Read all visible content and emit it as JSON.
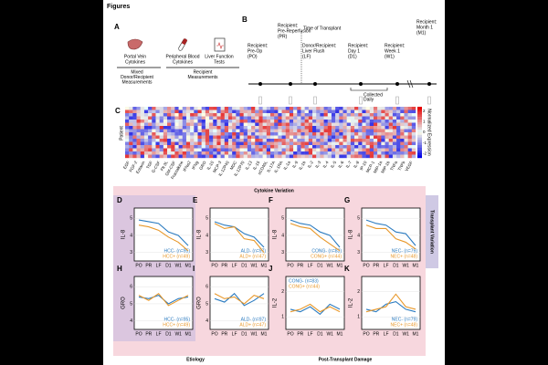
{
  "heading": "Figures",
  "panel_a": {
    "label": "A",
    "items": [
      [
        "Portal Vein",
        "Cytokines"
      ],
      [
        "Peripheral Blood",
        "Cytokines"
      ],
      [
        "Liver Function",
        "Tests"
      ]
    ],
    "groups": [
      [
        "Mixed",
        "Donor/Recipient",
        "Measurements"
      ],
      [
        "Recipient",
        "Measurements"
      ]
    ]
  },
  "panel_b": {
    "label": "B",
    "points": [
      [
        "Recipient:",
        "Pre-Op",
        "(PO)"
      ],
      [
        "Recipient:",
        "Pre-Reperfusion",
        "(PR)"
      ],
      [
        "Donor/Recipient:",
        "Liver Flush",
        "(LF)"
      ],
      [
        "Recipient:",
        "Day 1",
        "(D1)"
      ],
      [
        "Recipient:",
        "Week 1",
        "(W1)"
      ],
      [
        "Recipient:",
        "Month 1",
        "(M1)"
      ]
    ],
    "transplant": "Time of Transplant",
    "daily": [
      "Collected",
      "Daily"
    ]
  },
  "panel_c": {
    "label": "C",
    "ylabel": "Patient",
    "colorbar_label": "Normalized Expression",
    "colorbar_ticks": [
      2,
      1,
      0,
      -1,
      -2
    ],
    "colorbar_lim": [
      -2.4,
      2.4
    ],
    "cytokines": [
      "EGF",
      "FGF-2",
      "Eotaxin",
      "TGF",
      "G-CSF",
      "Flt-3L",
      "GM-CSF",
      "Fractalkine",
      "IFNa2",
      "IFNg",
      "GRO",
      "IL-10",
      "MCP-3",
      "IL-12P40",
      "MDC",
      "IL-12P70",
      "IL-13",
      "IL-15",
      "sCD40L",
      "IL-17A",
      "IL-1RA",
      "IL-1a",
      "IL-9",
      "IL-1b",
      "IL-2",
      "IL-3",
      "IL-4",
      "IL-5",
      "IL-6",
      "IL-7",
      "IL-8",
      "IP-10",
      "MCP-1",
      "MIP-1a",
      "MIP-1b",
      "TNFa",
      "TNFb",
      "VEGF"
    ]
  },
  "sections": {
    "top": "Cytokine Variation",
    "right": "Transplant Variation",
    "bottom_left": "Etiology",
    "bottom_right": "Post-Transplant Damage"
  },
  "chart_data": [
    {
      "type": "line",
      "label": "D",
      "ylabel": "IL-8",
      "categories": [
        "PO",
        "PR",
        "LF",
        "D1",
        "W1",
        "M1"
      ],
      "ylim": [
        2.5,
        5.6
      ],
      "yticks": [
        3,
        4,
        5
      ],
      "legend": "bottom-right",
      "series": [
        {
          "name": "HCC- (n=95)",
          "color": "#2b7bc0",
          "values": [
            4.9,
            4.8,
            4.7,
            4.2,
            4.0,
            3.4
          ]
        },
        {
          "name": "HCC+ (n=49)",
          "color": "#e8982a",
          "values": [
            4.6,
            4.5,
            4.3,
            3.9,
            3.6,
            3.1
          ]
        }
      ]
    },
    {
      "type": "line",
      "label": "E",
      "ylabel": "IL-8",
      "categories": [
        "PO",
        "PR",
        "LF",
        "D1",
        "W1",
        "M1"
      ],
      "ylim": [
        2.5,
        5.6
      ],
      "yticks": [
        3,
        4,
        5
      ],
      "legend": "bottom-right",
      "series": [
        {
          "name": "ALD- (n=97)",
          "color": "#2b7bc0",
          "values": [
            4.8,
            4.6,
            4.5,
            4.1,
            3.9,
            3.3
          ]
        },
        {
          "name": "ALD+ (n=47)",
          "color": "#e8982a",
          "values": [
            4.7,
            4.4,
            4.5,
            3.8,
            3.7,
            3.0
          ]
        }
      ]
    },
    {
      "type": "line",
      "label": "F",
      "ylabel": "IL-8",
      "categories": [
        "PO",
        "PR",
        "LF",
        "D1",
        "W1",
        "M1"
      ],
      "ylim": [
        2.5,
        5.6
      ],
      "yticks": [
        3,
        4,
        5
      ],
      "legend": "bottom-right",
      "series": [
        {
          "name": "CONG- (n=83)",
          "color": "#2b7bc0",
          "values": [
            4.9,
            4.7,
            4.6,
            4.2,
            4.0,
            3.3
          ]
        },
        {
          "name": "CONG+ (n=44)",
          "color": "#e8982a",
          "values": [
            4.7,
            4.5,
            4.4,
            3.9,
            3.5,
            3.1
          ]
        }
      ]
    },
    {
      "type": "line",
      "label": "G",
      "ylabel": "IL-8",
      "categories": [
        "PO",
        "PR",
        "LF",
        "D1",
        "W1",
        "M1"
      ],
      "ylim": [
        2.5,
        5.6
      ],
      "yticks": [
        3,
        4,
        5
      ],
      "legend": "bottom-right",
      "series": [
        {
          "name": "NEC- (n=79)",
          "color": "#2b7bc0",
          "values": [
            4.9,
            4.7,
            4.6,
            4.2,
            4.1,
            3.4
          ]
        },
        {
          "name": "NEC+ (n=48)",
          "color": "#e8982a",
          "values": [
            4.6,
            4.4,
            4.4,
            3.8,
            3.6,
            3.2
          ]
        }
      ]
    },
    {
      "type": "line",
      "label": "H",
      "ylabel": "GRO",
      "categories": [
        "PO",
        "PR",
        "LF",
        "D1",
        "W1",
        "M1"
      ],
      "ylim": [
        3.5,
        6.6
      ],
      "yticks": [
        4,
        5,
        6
      ],
      "legend": "bottom-right",
      "series": [
        {
          "name": "HCC- (n=95)",
          "color": "#2b7bc0",
          "values": [
            5.4,
            5.3,
            5.5,
            5.0,
            5.3,
            5.4
          ]
        },
        {
          "name": "HCC+ (n=49)",
          "color": "#e8982a",
          "values": [
            5.5,
            5.2,
            5.6,
            4.9,
            5.2,
            5.5
          ]
        }
      ]
    },
    {
      "type": "line",
      "label": "I",
      "ylabel": "GRO",
      "categories": [
        "PO",
        "PR",
        "LF",
        "D1",
        "W1",
        "M1"
      ],
      "ylim": [
        3.5,
        6.6
      ],
      "yticks": [
        4,
        5,
        6
      ],
      "legend": "bottom-right",
      "series": [
        {
          "name": "ALD- (n=97)",
          "color": "#2b7bc0",
          "values": [
            5.3,
            5.1,
            5.6,
            4.9,
            5.2,
            5.6
          ]
        },
        {
          "name": "ALD+ (n=47)",
          "color": "#e8982a",
          "values": [
            5.6,
            5.3,
            5.4,
            5.0,
            5.5,
            5.3
          ]
        }
      ]
    },
    {
      "type": "line",
      "label": "J",
      "ylabel": "IL-2",
      "categories": [
        "PO",
        "PR",
        "LF",
        "D1",
        "W1",
        "M1"
      ],
      "ylim": [
        0.5,
        2.6
      ],
      "yticks": [
        1,
        2
      ],
      "legend": "top-left",
      "series": [
        {
          "name": "CONG- (n=83)",
          "color": "#2b7bc0",
          "values": [
            1.3,
            1.2,
            1.4,
            1.1,
            1.5,
            1.3
          ]
        },
        {
          "name": "CONG+ (n=44)",
          "color": "#e8982a",
          "values": [
            1.2,
            1.3,
            1.5,
            1.2,
            1.4,
            1.2
          ]
        }
      ]
    },
    {
      "type": "line",
      "label": "K",
      "ylabel": "IL-2",
      "categories": [
        "PO",
        "PR",
        "LF",
        "D1",
        "W1",
        "M1"
      ],
      "ylim": [
        0.5,
        2.6
      ],
      "yticks": [
        1,
        2
      ],
      "legend": "bottom-right",
      "series": [
        {
          "name": "NEC- (n=79)",
          "color": "#2b7bc0",
          "values": [
            1.3,
            1.2,
            1.5,
            1.6,
            1.3,
            1.2
          ]
        },
        {
          "name": "NEC+ (n=48)",
          "color": "#e8982a",
          "values": [
            1.2,
            1.3,
            1.4,
            1.9,
            1.4,
            1.3
          ]
        }
      ]
    }
  ]
}
